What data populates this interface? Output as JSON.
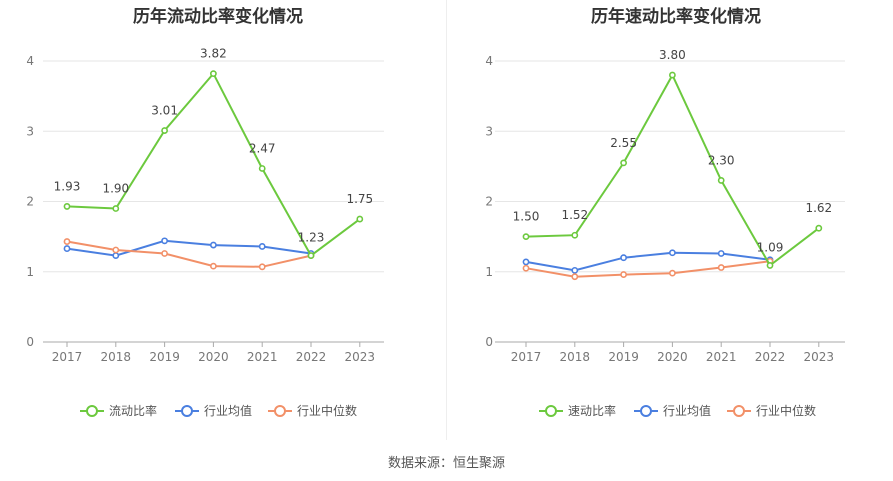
{
  "source_text": "数据来源：恒生聚源",
  "chart_data": [
    {
      "type": "line",
      "title": "历年流动比率变化情况",
      "categories": [
        "2017",
        "2018",
        "2019",
        "2020",
        "2021",
        "2022",
        "2023"
      ],
      "ylim": [
        0,
        4
      ],
      "yticks": [
        "0",
        "1",
        "2",
        "3",
        "4"
      ],
      "grid": true,
      "legend_position": "bottom",
      "series": [
        {
          "name": "流动比率",
          "values": [
            1.93,
            1.9,
            3.01,
            3.82,
            2.47,
            1.23,
            1.75
          ],
          "labels": [
            "1.93",
            "1.90",
            "3.01",
            "3.82",
            "2.47",
            "1.23",
            "1.75"
          ],
          "color": "#6cc93e"
        },
        {
          "name": "行业均值",
          "values": [
            1.33,
            1.23,
            1.44,
            1.38,
            1.36,
            1.26,
            null
          ],
          "color": "#4a7fe0"
        },
        {
          "name": "行业中位数",
          "values": [
            1.43,
            1.31,
            1.26,
            1.08,
            1.07,
            1.23,
            null
          ],
          "color": "#f29068"
        }
      ]
    },
    {
      "type": "line",
      "title": "历年速动比率变化情况",
      "categories": [
        "2017",
        "2018",
        "2019",
        "2020",
        "2021",
        "2022",
        "2023"
      ],
      "ylim": [
        0,
        4
      ],
      "yticks": [
        "0",
        "1",
        "2",
        "3",
        "4"
      ],
      "grid": true,
      "legend_position": "bottom",
      "series": [
        {
          "name": "速动比率",
          "values": [
            1.5,
            1.52,
            2.55,
            3.8,
            2.3,
            1.09,
            1.62
          ],
          "labels": [
            "1.50",
            "1.52",
            "2.55",
            "3.80",
            "2.30",
            "1.09",
            "1.62"
          ],
          "color": "#6cc93e"
        },
        {
          "name": "行业均值",
          "values": [
            1.14,
            1.02,
            1.2,
            1.27,
            1.26,
            1.17,
            null
          ],
          "color": "#4a7fe0"
        },
        {
          "name": "行业中位数",
          "values": [
            1.05,
            0.93,
            0.96,
            0.98,
            1.06,
            1.15,
            null
          ],
          "color": "#f29068"
        }
      ]
    }
  ]
}
